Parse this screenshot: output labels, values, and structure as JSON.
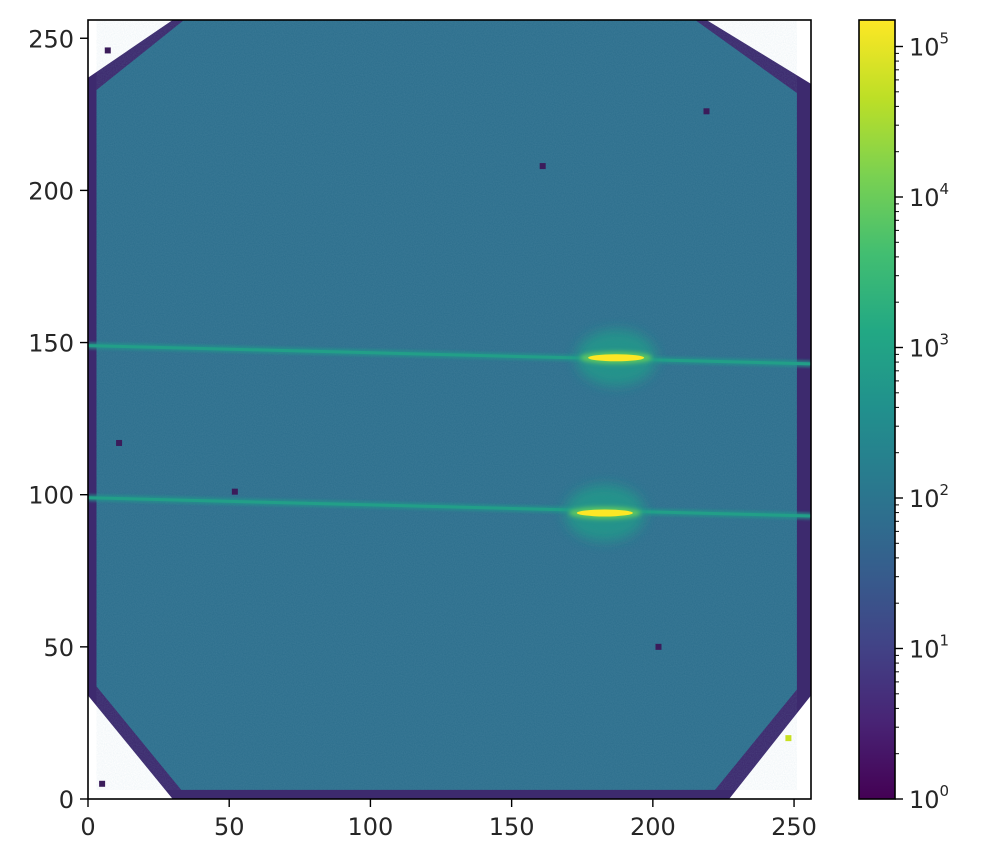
{
  "chart_data": {
    "type": "heatmap",
    "title": "",
    "xlabel": "",
    "ylabel": "",
    "xlim": [
      0,
      256
    ],
    "ylim": [
      0,
      256
    ],
    "x_ticks": [
      "0",
      "50",
      "100",
      "150",
      "200",
      "250"
    ],
    "y_ticks": [
      "0",
      "50",
      "100",
      "150",
      "200",
      "250"
    ],
    "x_tick_values": [
      0,
      50,
      100,
      150,
      200,
      250
    ],
    "y_tick_values": [
      0,
      50,
      100,
      150,
      200,
      250
    ],
    "grid": false,
    "colormap": "viridis",
    "colorbar": {
      "scale": "log",
      "range": [
        1,
        150000
      ],
      "ticks": [
        {
          "value": 1,
          "base": "10",
          "exp": "0"
        },
        {
          "value": 10,
          "base": "10",
          "exp": "1"
        },
        {
          "value": 100,
          "base": "10",
          "exp": "2"
        },
        {
          "value": 1000,
          "base": "10",
          "exp": "3"
        },
        {
          "value": 10000,
          "base": "10",
          "exp": "4"
        },
        {
          "value": 100000,
          "base": "10",
          "exp": "5"
        }
      ],
      "placement": "right"
    },
    "background_level": 80,
    "masked_region": "corners of square detector outside octagonal edge",
    "streaks": [
      {
        "x_start": 0,
        "y_start": 149,
        "x_end": 256,
        "y_end": 143,
        "level": 800
      },
      {
        "x_start": 0,
        "y_start": 99,
        "x_end": 256,
        "y_end": 93,
        "level": 800
      }
    ],
    "peaks": [
      {
        "x": 187,
        "y": 145,
        "level": 150000,
        "halo_level": 600
      },
      {
        "x": 183,
        "y": 94,
        "level": 150000,
        "halo_level": 600
      }
    ],
    "hot_pixels": [
      {
        "x": 7,
        "y": 246
      },
      {
        "x": 219,
        "y": 226
      },
      {
        "x": 161,
        "y": 208
      },
      {
        "x": 11,
        "y": 117
      },
      {
        "x": 52,
        "y": 101
      },
      {
        "x": 202,
        "y": 50
      },
      {
        "x": 5,
        "y": 5
      },
      {
        "x": 248,
        "y": 20
      }
    ]
  }
}
